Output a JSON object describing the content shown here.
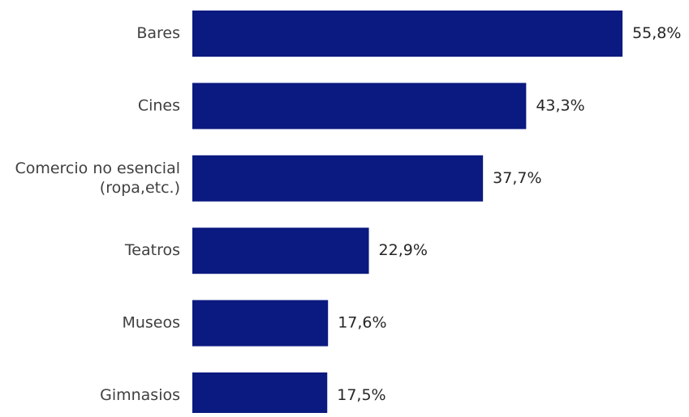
{
  "chart_data": {
    "type": "bar",
    "orientation": "horizontal",
    "categories": [
      [
        "Bares"
      ],
      [
        "Cines"
      ],
      [
        "Comercio no esencial",
        "(ropa,etc.)"
      ],
      [
        "Teatros"
      ],
      [
        "Museos"
      ],
      [
        "Gimnasios"
      ]
    ],
    "values": [
      55.8,
      43.3,
      37.7,
      22.9,
      17.6,
      17.5
    ],
    "value_labels": [
      "55,8%",
      "43,3%",
      "37,7%",
      "22,9%",
      "17,6%",
      "17,5%"
    ],
    "xlim": [
      0,
      58
    ],
    "grid": false,
    "legend": "none",
    "bar_color": "#0b1a80"
  }
}
